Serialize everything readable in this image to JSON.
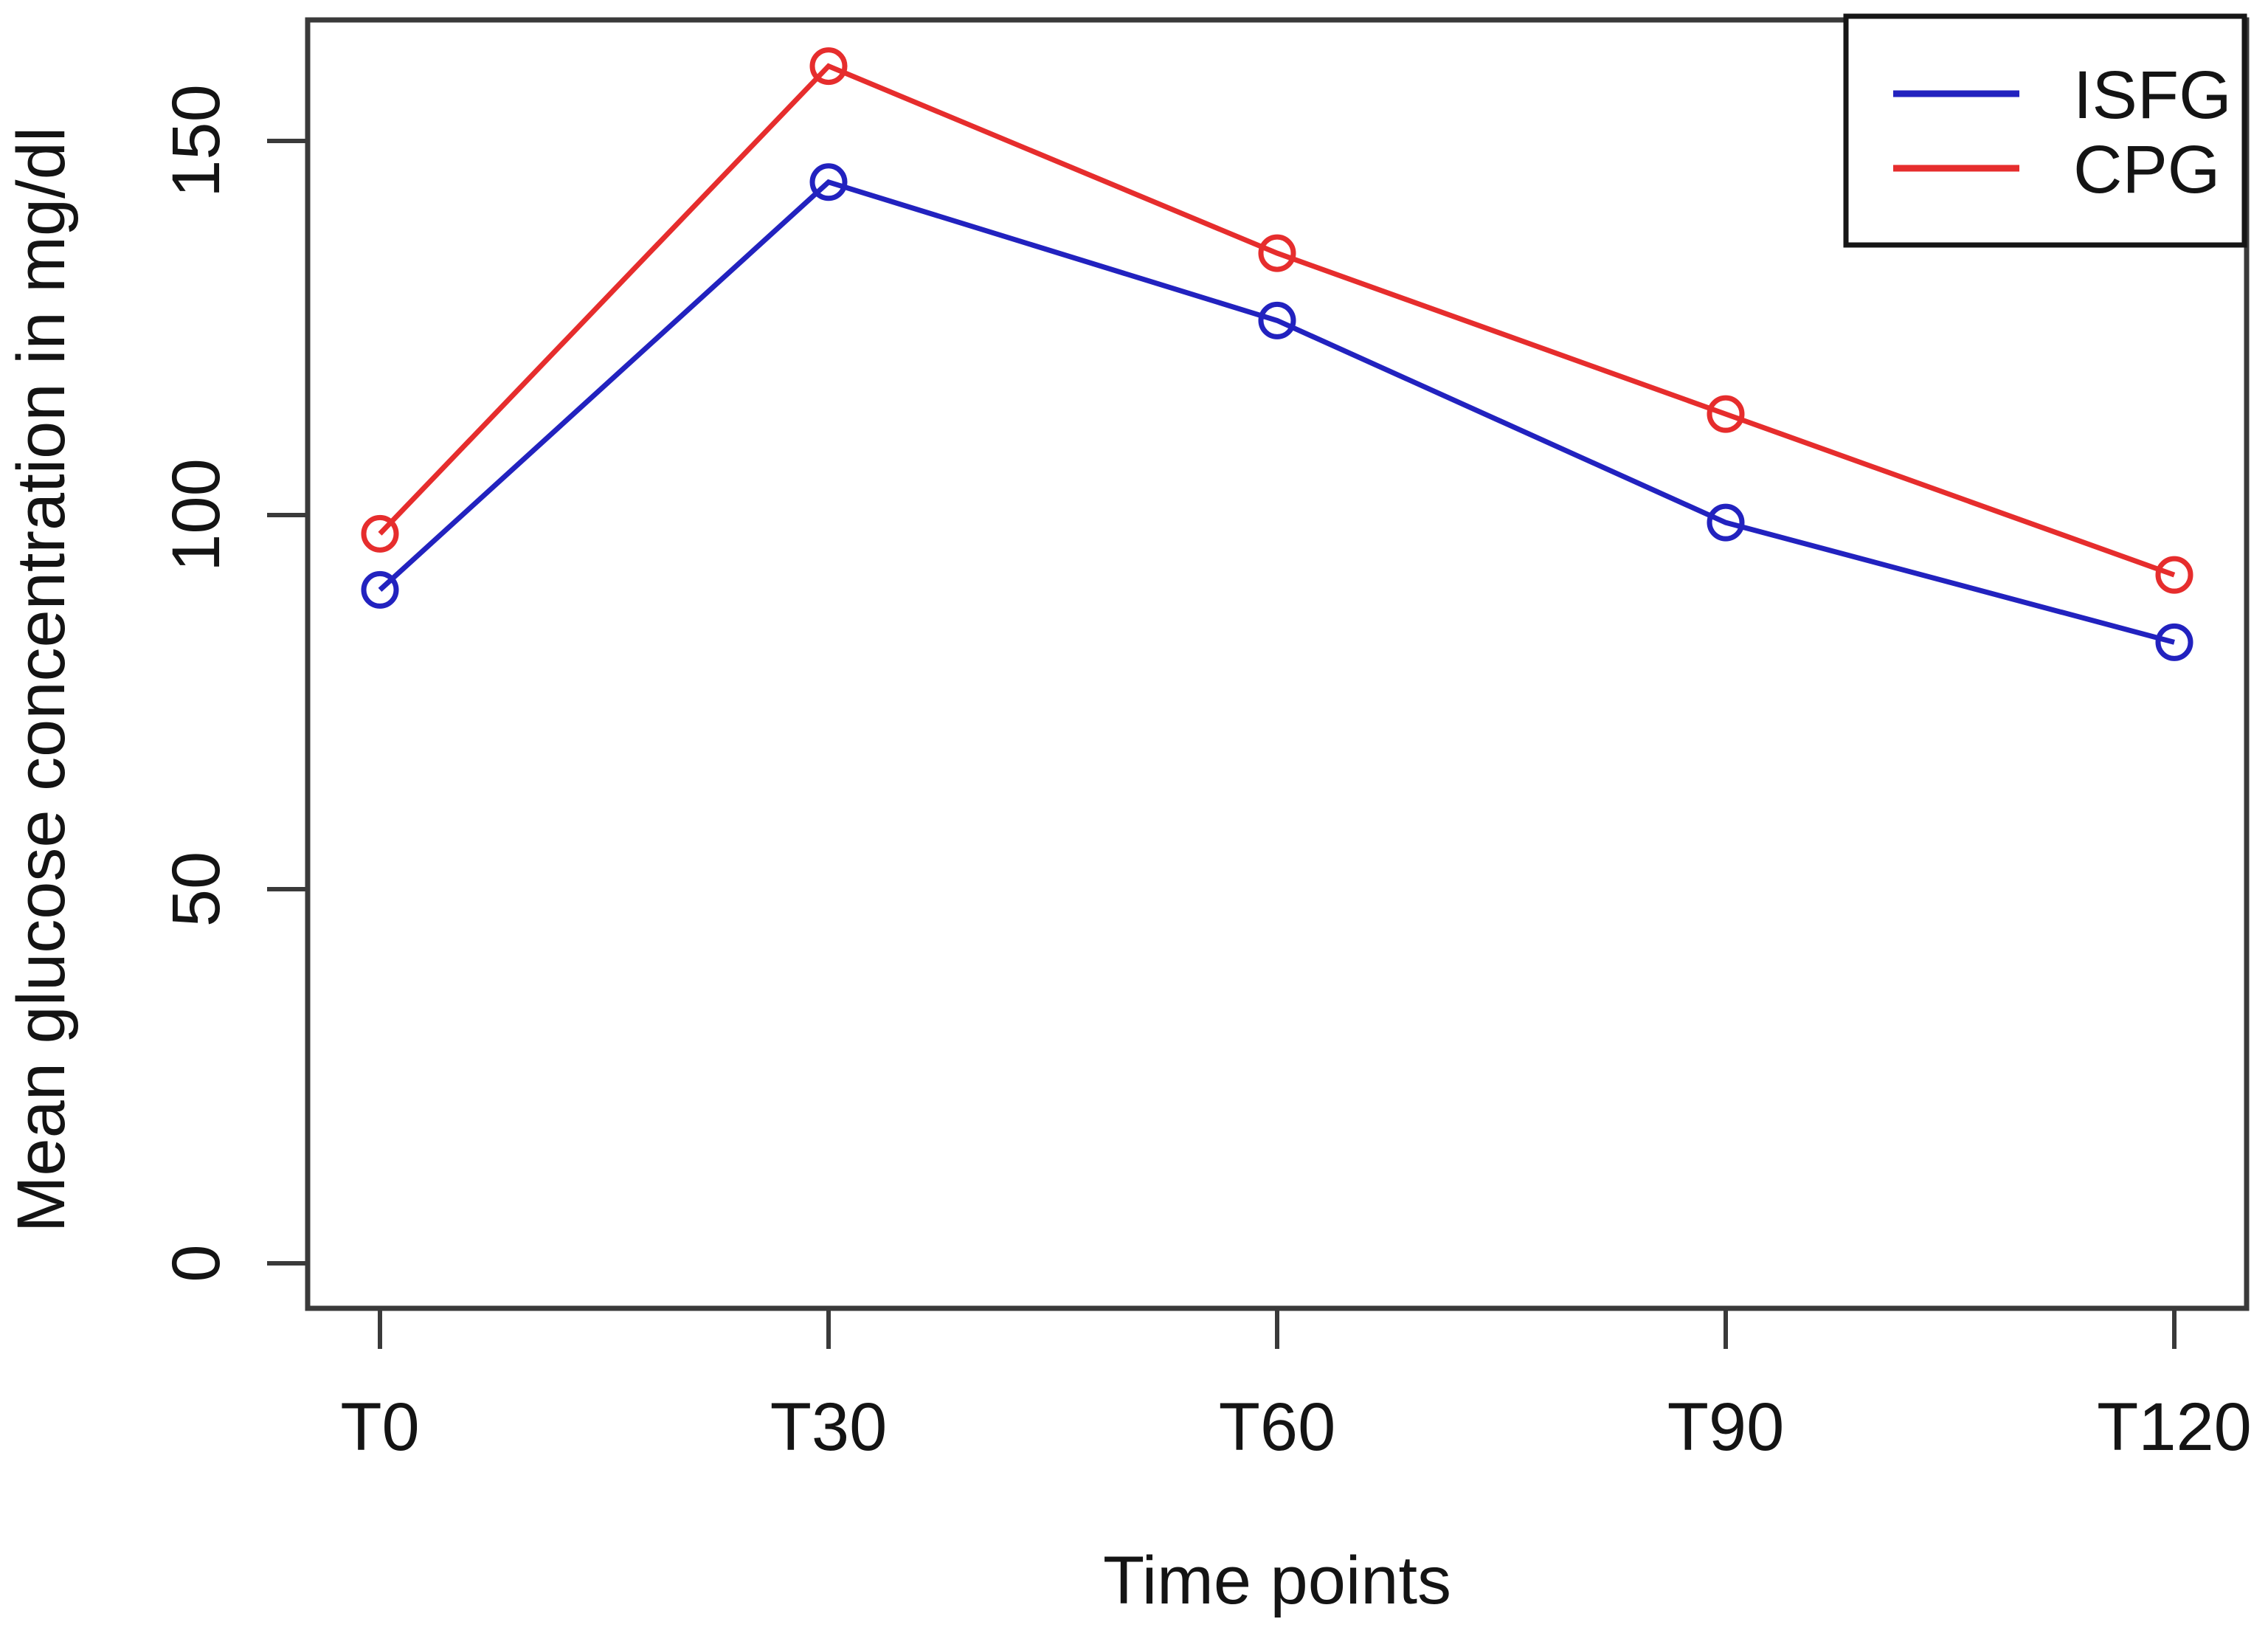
{
  "chart_data": {
    "type": "line",
    "xlabel": "Time points",
    "ylabel": "Mean glucose concentration in mg/dl",
    "categories": [
      "T0",
      "T30",
      "T60",
      "T90",
      "T120"
    ],
    "y_ticks": [
      "0",
      "50",
      "100",
      "150"
    ],
    "y_tick_values": [
      0,
      50,
      100,
      150
    ],
    "ylim": [
      0,
      165
    ],
    "grid": false,
    "marker": "open-circle",
    "legend_position": "topright",
    "axis_color": "#3a3a3a",
    "text_color": "#141414",
    "background_color": "#ffffff",
    "series": [
      {
        "name": "ISFG",
        "color": "#2222bf",
        "values": [
          90,
          144.5,
          126,
          99,
          83
        ]
      },
      {
        "name": "CPG",
        "color": "#e62d2d",
        "values": [
          97.5,
          160,
          135,
          113.5,
          92
        ]
      }
    ]
  }
}
